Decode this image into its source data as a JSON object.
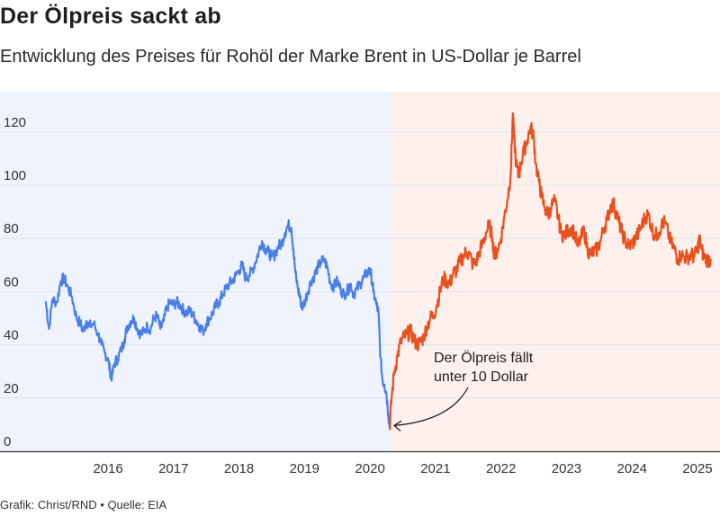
{
  "title": "Der Ölpreis sackt ab",
  "subtitle": "Entwicklung des Preises für Rohöl der Marke Brent in US-Dollar je Barrel",
  "footer": {
    "credit": "Grafik: Christ/RND",
    "separator": "•",
    "source": "Quelle: EIA"
  },
  "chart_data": {
    "type": "line",
    "title": "Der Ölpreis sackt ab",
    "subtitle": "Entwicklung des Preises für Rohöl der Marke Brent in US-Dollar je Barrel",
    "xlabel": "",
    "ylabel": "",
    "ylim": [
      0,
      135
    ],
    "xlim": [
      2015.05,
      2025.2
    ],
    "y_ticks": [
      0,
      20,
      40,
      60,
      80,
      100,
      120
    ],
    "x_ticks": [
      "2016",
      "2017",
      "2018",
      "2019",
      "2020",
      "2021",
      "2022",
      "2023",
      "2024",
      "2025"
    ],
    "grid": "horizontal",
    "legend": "none",
    "background_regions": [
      {
        "from": 2015.05,
        "to": 2020.33,
        "color": "#eef3fd"
      },
      {
        "from": 2020.33,
        "to": 2025.2,
        "color": "#fdf0ed"
      }
    ],
    "annotation": {
      "lines": [
        "Der Ölpreis fällt",
        "unter 10 Dollar"
      ],
      "point": {
        "x": 2020.3,
        "y": 9
      }
    },
    "series": [
      {
        "color": "#4a7ee8",
        "points": [
          [
            2015.05,
            56
          ],
          [
            2015.1,
            46
          ],
          [
            2015.15,
            57
          ],
          [
            2015.22,
            56
          ],
          [
            2015.28,
            64
          ],
          [
            2015.33,
            65
          ],
          [
            2015.38,
            62
          ],
          [
            2015.45,
            58
          ],
          [
            2015.52,
            50
          ],
          [
            2015.58,
            48
          ],
          [
            2015.62,
            45
          ],
          [
            2015.67,
            49
          ],
          [
            2015.72,
            47
          ],
          [
            2015.78,
            48
          ],
          [
            2015.85,
            44
          ],
          [
            2015.9,
            40
          ],
          [
            2015.95,
            37
          ],
          [
            2016.0,
            35
          ],
          [
            2016.03,
            30
          ],
          [
            2016.06,
            28
          ],
          [
            2016.1,
            33
          ],
          [
            2016.15,
            35
          ],
          [
            2016.2,
            38
          ],
          [
            2016.25,
            42
          ],
          [
            2016.3,
            47
          ],
          [
            2016.35,
            49
          ],
          [
            2016.4,
            50
          ],
          [
            2016.45,
            46
          ],
          [
            2016.5,
            44
          ],
          [
            2016.55,
            45
          ],
          [
            2016.6,
            47
          ],
          [
            2016.65,
            46
          ],
          [
            2016.7,
            50
          ],
          [
            2016.75,
            51
          ],
          [
            2016.8,
            46
          ],
          [
            2016.85,
            49
          ],
          [
            2016.9,
            54
          ],
          [
            2016.95,
            56
          ],
          [
            2017.0,
            55
          ],
          [
            2017.05,
            56
          ],
          [
            2017.1,
            55
          ],
          [
            2017.15,
            53
          ],
          [
            2017.2,
            52
          ],
          [
            2017.25,
            53
          ],
          [
            2017.3,
            51
          ],
          [
            2017.35,
            49
          ],
          [
            2017.4,
            47
          ],
          [
            2017.45,
            45
          ],
          [
            2017.5,
            48
          ],
          [
            2017.55,
            50
          ],
          [
            2017.6,
            52
          ],
          [
            2017.65,
            55
          ],
          [
            2017.7,
            56
          ],
          [
            2017.75,
            59
          ],
          [
            2017.8,
            61
          ],
          [
            2017.85,
            63
          ],
          [
            2017.9,
            64
          ],
          [
            2017.95,
            66
          ],
          [
            2018.0,
            68
          ],
          [
            2018.05,
            70
          ],
          [
            2018.1,
            65
          ],
          [
            2018.15,
            66
          ],
          [
            2018.2,
            68
          ],
          [
            2018.25,
            71
          ],
          [
            2018.3,
            75
          ],
          [
            2018.35,
            79
          ],
          [
            2018.4,
            76
          ],
          [
            2018.45,
            75
          ],
          [
            2018.5,
            73
          ],
          [
            2018.55,
            74
          ],
          [
            2018.6,
            77
          ],
          [
            2018.65,
            78
          ],
          [
            2018.7,
            82
          ],
          [
            2018.75,
            85
          ],
          [
            2018.8,
            84
          ],
          [
            2018.83,
            76
          ],
          [
            2018.86,
            67
          ],
          [
            2018.9,
            61
          ],
          [
            2018.93,
            58
          ],
          [
            2018.96,
            54
          ],
          [
            2019.0,
            56
          ],
          [
            2019.05,
            60
          ],
          [
            2019.1,
            64
          ],
          [
            2019.15,
            66
          ],
          [
            2019.2,
            69
          ],
          [
            2019.25,
            71
          ],
          [
            2019.3,
            72
          ],
          [
            2019.35,
            69
          ],
          [
            2019.4,
            63
          ],
          [
            2019.45,
            62
          ],
          [
            2019.5,
            64
          ],
          [
            2019.55,
            61
          ],
          [
            2019.6,
            59
          ],
          [
            2019.65,
            60
          ],
          [
            2019.7,
            63
          ],
          [
            2019.75,
            59
          ],
          [
            2019.8,
            61
          ],
          [
            2019.85,
            63
          ],
          [
            2019.9,
            65
          ],
          [
            2019.95,
            67
          ],
          [
            2020.0,
            68
          ],
          [
            2020.02,
            66
          ],
          [
            2020.05,
            60
          ],
          [
            2020.1,
            55
          ],
          [
            2020.13,
            52
          ],
          [
            2020.16,
            35
          ],
          [
            2020.19,
            27
          ],
          [
            2020.22,
            25
          ],
          [
            2020.25,
            22
          ],
          [
            2020.28,
            14
          ],
          [
            2020.3,
            9
          ]
        ]
      },
      {
        "color": "#e8501e",
        "points": [
          [
            2020.3,
            9
          ],
          [
            2020.33,
            20
          ],
          [
            2020.37,
            30
          ],
          [
            2020.42,
            36
          ],
          [
            2020.47,
            41
          ],
          [
            2020.52,
            43
          ],
          [
            2020.57,
            44
          ],
          [
            2020.62,
            45
          ],
          [
            2020.67,
            42
          ],
          [
            2020.72,
            40
          ],
          [
            2020.77,
            41
          ],
          [
            2020.82,
            43
          ],
          [
            2020.87,
            47
          ],
          [
            2020.92,
            50
          ],
          [
            2020.97,
            51
          ],
          [
            2021.02,
            55
          ],
          [
            2021.07,
            60
          ],
          [
            2021.12,
            65
          ],
          [
            2021.17,
            64
          ],
          [
            2021.22,
            63
          ],
          [
            2021.27,
            67
          ],
          [
            2021.32,
            68
          ],
          [
            2021.37,
            71
          ],
          [
            2021.42,
            73
          ],
          [
            2021.47,
            75
          ],
          [
            2021.52,
            74
          ],
          [
            2021.57,
            70
          ],
          [
            2021.62,
            71
          ],
          [
            2021.67,
            75
          ],
          [
            2021.72,
            78
          ],
          [
            2021.77,
            82
          ],
          [
            2021.82,
            85
          ],
          [
            2021.87,
            80
          ],
          [
            2021.9,
            73
          ],
          [
            2021.95,
            76
          ],
          [
            2022.0,
            80
          ],
          [
            2022.05,
            88
          ],
          [
            2022.1,
            95
          ],
          [
            2022.15,
            105
          ],
          [
            2022.18,
            127
          ],
          [
            2022.2,
            118
          ],
          [
            2022.23,
            108
          ],
          [
            2022.27,
            103
          ],
          [
            2022.3,
            108
          ],
          [
            2022.35,
            113
          ],
          [
            2022.4,
            117
          ],
          [
            2022.45,
            122
          ],
          [
            2022.5,
            118
          ],
          [
            2022.53,
            108
          ],
          [
            2022.58,
            101
          ],
          [
            2022.62,
            96
          ],
          [
            2022.67,
            91
          ],
          [
            2022.72,
            89
          ],
          [
            2022.77,
            92
          ],
          [
            2022.82,
            94
          ],
          [
            2022.87,
            88
          ],
          [
            2022.92,
            82
          ],
          [
            2022.97,
            81
          ],
          [
            2023.02,
            83
          ],
          [
            2023.07,
            84
          ],
          [
            2023.12,
            82
          ],
          [
            2023.17,
            77
          ],
          [
            2023.22,
            80
          ],
          [
            2023.27,
            83
          ],
          [
            2023.32,
            76
          ],
          [
            2023.37,
            74
          ],
          [
            2023.42,
            75
          ],
          [
            2023.47,
            76
          ],
          [
            2023.52,
            79
          ],
          [
            2023.57,
            84
          ],
          [
            2023.62,
            87
          ],
          [
            2023.67,
            92
          ],
          [
            2023.72,
            93
          ],
          [
            2023.75,
            90
          ],
          [
            2023.8,
            86
          ],
          [
            2023.85,
            82
          ],
          [
            2023.9,
            79
          ],
          [
            2023.95,
            77
          ],
          [
            2024.0,
            78
          ],
          [
            2024.05,
            80
          ],
          [
            2024.1,
            82
          ],
          [
            2024.15,
            85
          ],
          [
            2024.2,
            88
          ],
          [
            2024.25,
            89
          ],
          [
            2024.3,
            84
          ],
          [
            2024.35,
            81
          ],
          [
            2024.4,
            82
          ],
          [
            2024.45,
            85
          ],
          [
            2024.5,
            86
          ],
          [
            2024.55,
            82
          ],
          [
            2024.6,
            78
          ],
          [
            2024.65,
            76
          ],
          [
            2024.7,
            72
          ],
          [
            2024.75,
            74
          ],
          [
            2024.8,
            73
          ],
          [
            2024.85,
            73
          ],
          [
            2024.9,
            74
          ],
          [
            2024.95,
            73
          ],
          [
            2025.0,
            76
          ],
          [
            2025.03,
            80
          ],
          [
            2025.06,
            76
          ],
          [
            2025.1,
            73
          ],
          [
            2025.15,
            72
          ],
          [
            2025.2,
            72
          ]
        ]
      }
    ]
  }
}
